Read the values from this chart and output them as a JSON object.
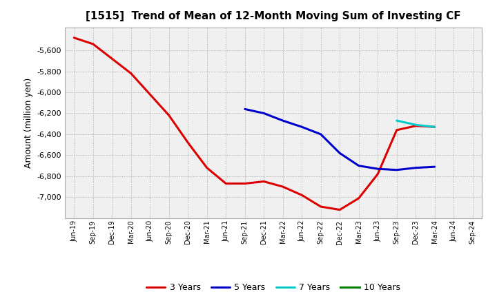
{
  "title": "[1515]  Trend of Mean of 12-Month Moving Sum of Investing CF",
  "ylabel": "Amount (million yen)",
  "background_color": "#ffffff",
  "plot_bg_color": "#f0f0f0",
  "grid_color": "#999999",
  "x_labels": [
    "Jun-19",
    "Sep-19",
    "Dec-19",
    "Mar-20",
    "Jun-20",
    "Sep-20",
    "Dec-20",
    "Mar-21",
    "Jun-21",
    "Sep-21",
    "Dec-21",
    "Mar-22",
    "Jun-22",
    "Sep-22",
    "Dec-22",
    "Mar-23",
    "Jun-23",
    "Sep-23",
    "Dec-23",
    "Mar-24",
    "Jun-24",
    "Sep-24"
  ],
  "series_3y": {
    "label": "3 Years",
    "color": "#dd0000",
    "values": [
      -5480,
      -5540,
      -5680,
      -5820,
      -6020,
      -6220,
      -6480,
      -6720,
      -6870,
      -6870,
      -6850,
      -6900,
      -6980,
      -7090,
      -7120,
      -7010,
      -6780,
      -6360,
      -6320,
      -6330,
      null,
      null
    ]
  },
  "series_5y": {
    "label": "5 Years",
    "color": "#0000cc",
    "values": [
      null,
      null,
      null,
      null,
      null,
      null,
      null,
      null,
      null,
      -6160,
      -6200,
      -6270,
      -6330,
      -6400,
      -6580,
      -6700,
      -6730,
      -6740,
      -6720,
      -6710,
      null,
      null
    ]
  },
  "series_7y": {
    "label": "7 Years",
    "color": "#00cccc",
    "values": [
      null,
      null,
      null,
      null,
      null,
      null,
      null,
      null,
      null,
      null,
      null,
      null,
      null,
      null,
      null,
      null,
      null,
      -6270,
      -6310,
      -6330,
      null,
      null
    ]
  },
  "series_10y": {
    "label": "10 Years",
    "color": "#008000",
    "values": [
      null,
      null,
      null,
      null,
      null,
      null,
      null,
      null,
      null,
      null,
      null,
      null,
      null,
      null,
      null,
      null,
      null,
      null,
      null,
      null,
      null,
      null
    ]
  },
  "ylim": [
    -7200,
    -5380
  ],
  "yticks": [
    -7000,
    -6800,
    -6600,
    -6400,
    -6200,
    -6000,
    -5800,
    -5600
  ],
  "legend_labels": [
    "3 Years",
    "5 Years",
    "7 Years",
    "10 Years"
  ],
  "legend_colors": [
    "#dd0000",
    "#0000cc",
    "#00cccc",
    "#008000"
  ]
}
